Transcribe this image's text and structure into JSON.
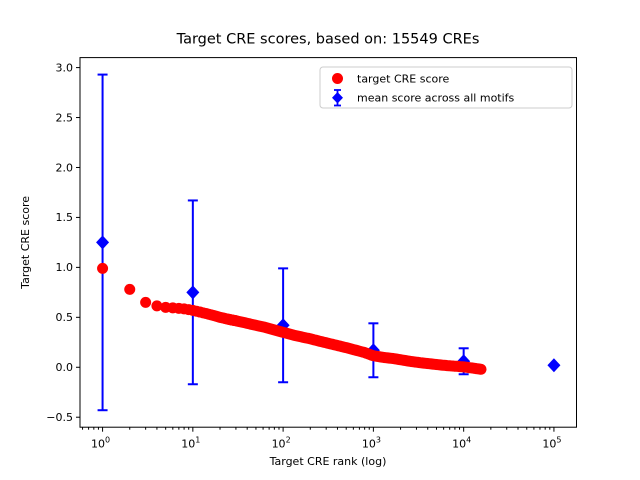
{
  "window": {
    "background": "#ffffff"
  },
  "chart_data": {
    "type": "scatter",
    "title": "Target CRE scores, based on: 15549 CREs",
    "xlabel": "Target CRE rank (log)",
    "ylabel": "Target CRE score",
    "x_scale": "log",
    "x_log_limits": [
      -0.25,
      5.25
    ],
    "ylim": [
      -0.6,
      3.1
    ],
    "grid": false,
    "x_tick_labels": [
      "10^0",
      "10^1",
      "10^2",
      "10^3",
      "10^4",
      "10^5"
    ],
    "x_tick_exponents": [
      0,
      1,
      2,
      3,
      4,
      5
    ],
    "y_tick_labels": [
      "−0.5",
      "0.0",
      "0.5",
      "1.0",
      "1.5",
      "2.0",
      "2.5",
      "3.0"
    ],
    "y_tick_values": [
      -0.5,
      0.0,
      0.5,
      1.0,
      1.5,
      2.0,
      2.5,
      3.0
    ],
    "legend": {
      "position": "upper right",
      "items": [
        {
          "label": "target CRE score",
          "color": "#ff0000",
          "marker": "circle"
        },
        {
          "label": "mean score across all motifs",
          "color": "#0000ff",
          "marker": "diamond-errorbar"
        }
      ]
    },
    "series": [
      {
        "name": "target CRE score",
        "marker": "circle",
        "color": "#ff0000",
        "points": [
          [
            1,
            0.99
          ],
          [
            2,
            0.78
          ],
          [
            3,
            0.65
          ],
          [
            4,
            0.615
          ],
          [
            5,
            0.6
          ],
          [
            6,
            0.595
          ],
          [
            8,
            0.585
          ],
          [
            10,
            0.57
          ],
          [
            13,
            0.545
          ],
          [
            16,
            0.525
          ],
          [
            20,
            0.5
          ],
          [
            25,
            0.48
          ],
          [
            32,
            0.46
          ],
          [
            40,
            0.44
          ],
          [
            50,
            0.42
          ],
          [
            63,
            0.4
          ],
          [
            79,
            0.375
          ],
          [
            100,
            0.35
          ],
          [
            126,
            0.325
          ],
          [
            158,
            0.305
          ],
          [
            200,
            0.285
          ],
          [
            251,
            0.262
          ],
          [
            316,
            0.24
          ],
          [
            398,
            0.218
          ],
          [
            501,
            0.196
          ],
          [
            631,
            0.172
          ],
          [
            794,
            0.148
          ],
          [
            1000,
            0.115
          ],
          [
            1259,
            0.1
          ],
          [
            1585,
            0.09
          ],
          [
            1995,
            0.075
          ],
          [
            2512,
            0.06
          ],
          [
            3162,
            0.048
          ],
          [
            3981,
            0.037
          ],
          [
            5012,
            0.027
          ],
          [
            6310,
            0.018
          ],
          [
            7943,
            0.011
          ],
          [
            10000,
            0.004
          ],
          [
            12589,
            -0.008
          ],
          [
            15549,
            -0.02
          ]
        ]
      },
      {
        "name": "mean score across all motifs",
        "marker": "diamond",
        "color": "#0000ff",
        "points": [
          {
            "x": 1,
            "y": 1.25,
            "yerr": 1.68
          },
          {
            "x": 10,
            "y": 0.75,
            "yerr": 0.92
          },
          {
            "x": 100,
            "y": 0.42,
            "yerr": 0.57
          },
          {
            "x": 1000,
            "y": 0.17,
            "yerr": 0.27
          },
          {
            "x": 10000,
            "y": 0.06,
            "yerr": 0.13
          },
          {
            "x": 100000,
            "y": 0.02,
            "yerr": 0.0
          }
        ]
      }
    ]
  }
}
